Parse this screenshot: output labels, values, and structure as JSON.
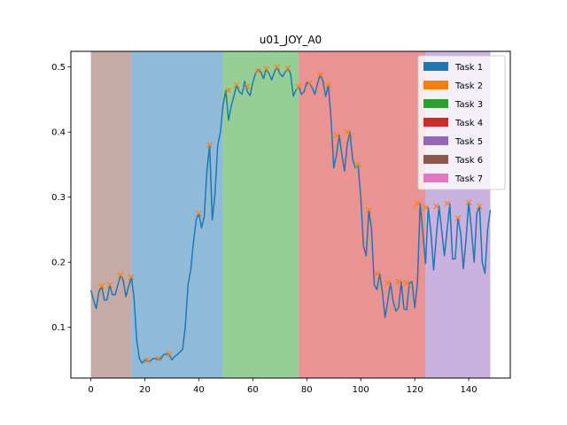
{
  "chart_data": {
    "type": "line",
    "title": "u01_JOY_A0",
    "xlabel": "",
    "ylabel": "",
    "xlim": [
      -7.4,
      155.4
    ],
    "ylim": [
      0.022,
      0.524
    ],
    "xticks": [
      0,
      20,
      40,
      60,
      80,
      100,
      120,
      140
    ],
    "yticks": [
      0.1,
      0.2,
      0.3,
      0.4,
      0.5
    ],
    "ytick_labels": [
      "0.1",
      "0.2",
      "0.3",
      "0.4",
      "0.5"
    ],
    "grid": false,
    "legend_position": "top-right",
    "legend": [
      {
        "label": "Task 1",
        "color": "#1f77b4"
      },
      {
        "label": "Task 2",
        "color": "#ff7f0e"
      },
      {
        "label": "Task 3",
        "color": "#2ca02c"
      },
      {
        "label": "Task 4",
        "color": "#d62728"
      },
      {
        "label": "Task 5",
        "color": "#9467bd"
      },
      {
        "label": "Task 6",
        "color": "#8c564b"
      },
      {
        "label": "Task 7",
        "color": "#e377c2"
      }
    ],
    "task_spans": [
      {
        "task": "Task 6",
        "start": 0,
        "end": 15,
        "color": "#8c564b"
      },
      {
        "task": "Task 1",
        "start": 15,
        "end": 49,
        "color": "#1f77b4"
      },
      {
        "task": "Task 3",
        "start": 49,
        "end": 77,
        "color": "#2ca02c"
      },
      {
        "task": "Task 4",
        "start": 77,
        "end": 124,
        "color": "#d62728"
      },
      {
        "task": "Task 5",
        "start": 124,
        "end": 148,
        "color": "#9467bd"
      }
    ],
    "series": [
      {
        "color": "#1f77b4",
        "y": [
          0.157,
          0.142,
          0.129,
          0.155,
          0.163,
          0.142,
          0.142,
          0.165,
          0.15,
          0.15,
          0.165,
          0.18,
          0.172,
          0.147,
          0.163,
          0.177,
          0.145,
          0.08,
          0.052,
          0.045,
          0.05,
          0.048,
          0.048,
          0.052,
          0.052,
          0.05,
          0.052,
          0.058,
          0.059,
          0.058,
          0.05,
          0.055,
          0.058,
          0.062,
          0.066,
          0.102,
          0.165,
          0.188,
          0.23,
          0.265,
          0.275,
          0.253,
          0.27,
          0.34,
          0.38,
          0.265,
          0.305,
          0.38,
          0.4,
          0.442,
          0.464,
          0.418,
          0.44,
          0.455,
          0.472,
          0.462,
          0.458,
          0.478,
          0.462,
          0.456,
          0.476,
          0.49,
          0.496,
          0.492,
          0.482,
          0.497,
          0.49,
          0.48,
          0.492,
          0.5,
          0.49,
          0.485,
          0.492,
          0.498,
          0.49,
          0.455,
          0.465,
          0.47,
          0.458,
          0.462,
          0.476,
          0.475,
          0.468,
          0.458,
          0.475,
          0.488,
          0.478,
          0.455,
          0.472,
          0.42,
          0.345,
          0.365,
          0.395,
          0.365,
          0.34,
          0.382,
          0.4,
          0.358,
          0.345,
          0.35,
          0.3,
          0.225,
          0.21,
          0.28,
          0.25,
          0.165,
          0.158,
          0.182,
          0.155,
          0.115,
          0.14,
          0.168,
          0.14,
          0.125,
          0.13,
          0.17,
          0.128,
          0.127,
          0.168,
          0.17,
          0.13,
          0.168,
          0.29,
          0.245,
          0.198,
          0.284,
          0.245,
          0.188,
          0.24,
          0.286,
          0.248,
          0.21,
          0.25,
          0.29,
          0.205,
          0.205,
          0.268,
          0.245,
          0.19,
          0.235,
          0.292,
          0.25,
          0.2,
          0.275,
          0.286,
          0.2,
          0.183,
          0.25,
          0.28
        ]
      }
    ],
    "markers": {
      "label": "Task 2",
      "color": "#ff7f0e",
      "points": [
        {
          "x": 4,
          "y": 0.163
        },
        {
          "x": 7,
          "y": 0.165
        },
        {
          "x": 11,
          "y": 0.18
        },
        {
          "x": 15,
          "y": 0.177
        },
        {
          "x": 21,
          "y": 0.05
        },
        {
          "x": 25,
          "y": 0.052
        },
        {
          "x": 29,
          "y": 0.059
        },
        {
          "x": 40,
          "y": 0.275
        },
        {
          "x": 44,
          "y": 0.38
        },
        {
          "x": 51,
          "y": 0.464
        },
        {
          "x": 54,
          "y": 0.472
        },
        {
          "x": 58,
          "y": 0.47
        },
        {
          "x": 62,
          "y": 0.494
        },
        {
          "x": 65,
          "y": 0.497
        },
        {
          "x": 69,
          "y": 0.5
        },
        {
          "x": 73,
          "y": 0.498
        },
        {
          "x": 77,
          "y": 0.47
        },
        {
          "x": 81,
          "y": 0.475
        },
        {
          "x": 85,
          "y": 0.488
        },
        {
          "x": 88,
          "y": 0.472
        },
        {
          "x": 91,
          "y": 0.395
        },
        {
          "x": 95,
          "y": 0.4
        },
        {
          "x": 99,
          "y": 0.35
        },
        {
          "x": 103,
          "y": 0.28
        },
        {
          "x": 106,
          "y": 0.182
        },
        {
          "x": 110,
          "y": 0.168
        },
        {
          "x": 114,
          "y": 0.17
        },
        {
          "x": 117,
          "y": 0.168
        },
        {
          "x": 121,
          "y": 0.29
        },
        {
          "x": 124,
          "y": 0.284
        },
        {
          "x": 128,
          "y": 0.286
        },
        {
          "x": 132,
          "y": 0.29
        },
        {
          "x": 136,
          "y": 0.268
        },
        {
          "x": 140,
          "y": 0.292
        },
        {
          "x": 144,
          "y": 0.286
        }
      ]
    }
  }
}
